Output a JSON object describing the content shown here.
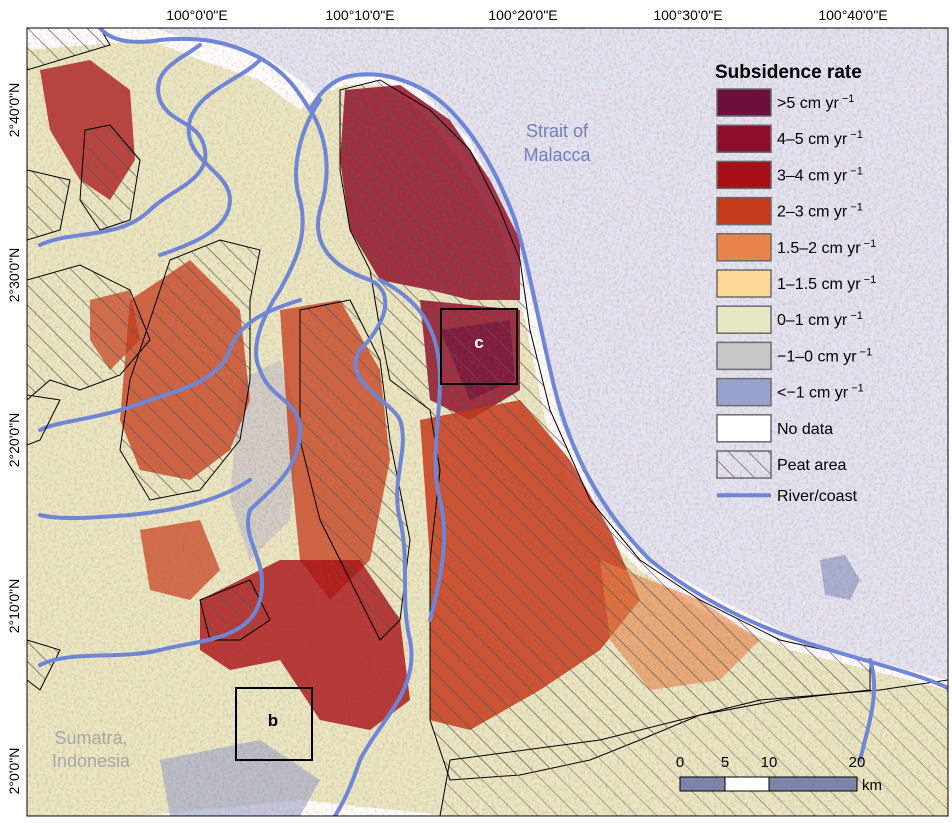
{
  "lon_labels": [
    "100°0'0\"E",
    "100°10'0\"E",
    "100°20'0\"E",
    "100°30'0\"E",
    "100°40'0\"E"
  ],
  "lat_labels": [
    "2°40'0\"N",
    "2°30'0\"N",
    "2°20'0\"N",
    "2°10'0\"N",
    "2°0'0\"N"
  ],
  "legend": {
    "title": "Subsidence rate",
    "items": [
      {
        "label": ">5 cm yr",
        "sup": "−1",
        "color": "#6b0f3e"
      },
      {
        "label": "4–5 cm yr",
        "sup": "−1",
        "color": "#8e0f2a"
      },
      {
        "label": "3–4 cm yr",
        "sup": "−1",
        "color": "#a50f15"
      },
      {
        "label": "2–3 cm yr",
        "sup": "−1",
        "color": "#c43a1a"
      },
      {
        "label": "1.5–2 cm yr",
        "sup": "−1",
        "color": "#e6844a"
      },
      {
        "label": "1–1.5 cm yr",
        "sup": "−1",
        "color": "#fbd896"
      },
      {
        "label": "0–1 cm yr",
        "sup": "−1",
        "color": "#e8e7c3"
      },
      {
        "label": "−1–0 cm yr",
        "sup": "−1",
        "color": "#c8c8c8"
      },
      {
        "label": "<−1 cm yr",
        "sup": "−1",
        "color": "#98a3cb"
      },
      {
        "label": "No data",
        "sup": "",
        "color": "#ffffff"
      },
      {
        "label": "Peat area",
        "sup": "",
        "color": "hatch"
      },
      {
        "label": "River/coast",
        "sup": "",
        "color": "line"
      }
    ]
  },
  "places": {
    "sea_line1": "Strait of",
    "sea_line2": "Malacca",
    "land_line1": "Sumatra,",
    "land_line2": "Indonesia"
  },
  "insets": {
    "c": "c",
    "b": "b"
  },
  "scalebar": {
    "ticks": [
      "0",
      "5",
      "10",
      "20"
    ],
    "unit": "km"
  },
  "colors": {
    "river": "#6f86d6",
    "sea": "#e1e4f1",
    "sea_text": "#6f7fbf",
    "land_text": "#a8a8a8"
  }
}
